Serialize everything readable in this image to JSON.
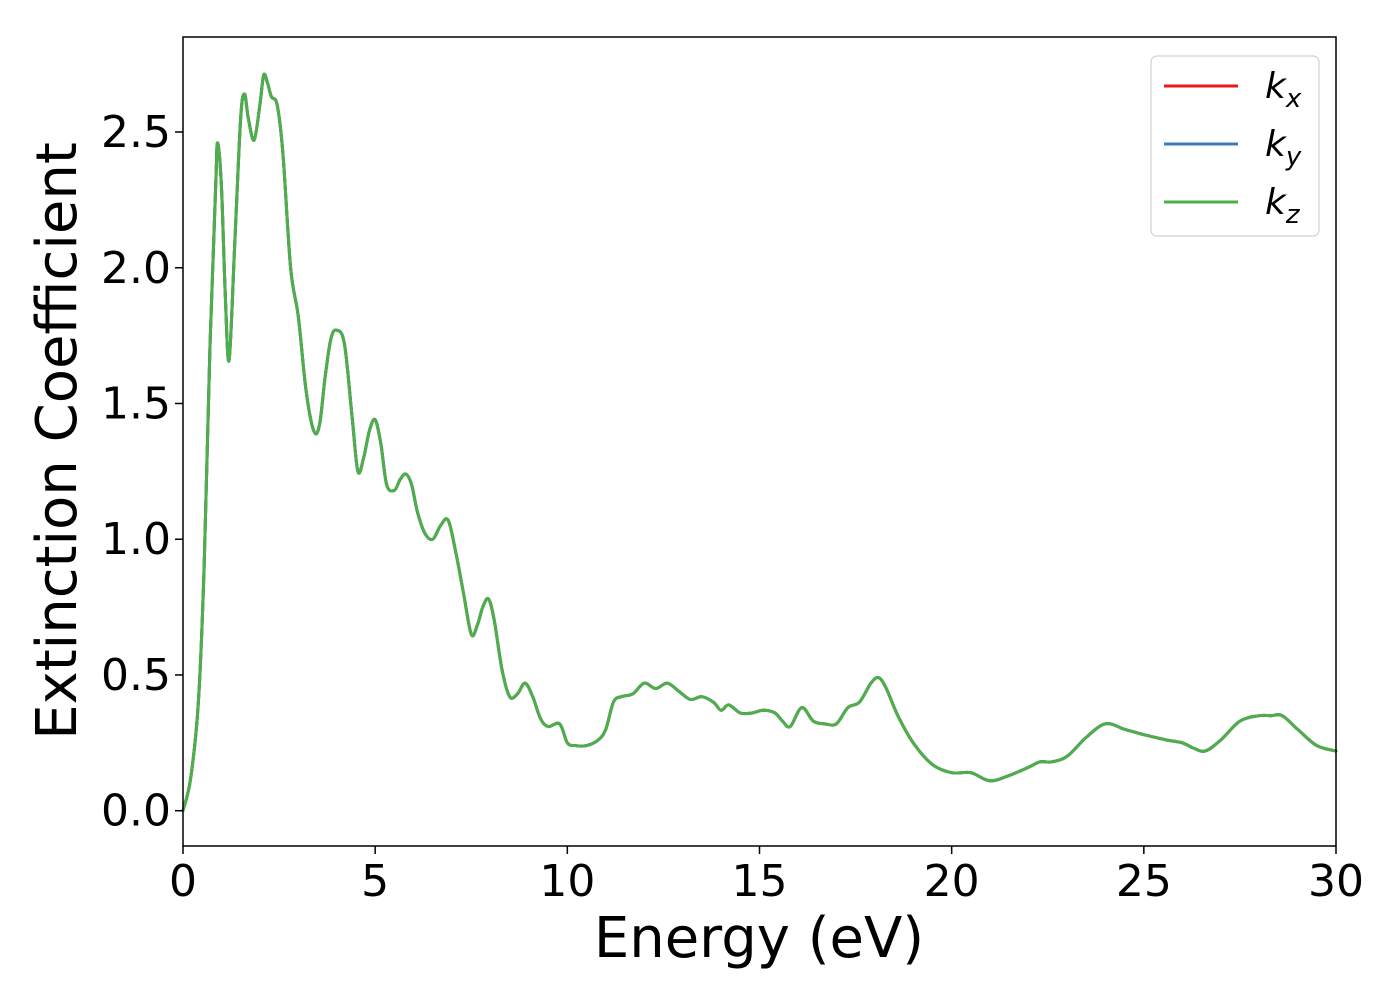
{
  "chart_data": {
    "type": "line",
    "xlabel": "Energy (eV)",
    "ylabel": "Extinction Coefficient",
    "xlim": [
      0,
      30
    ],
    "ylim": [
      -0.13,
      2.85
    ],
    "xticks": [
      "0",
      "5",
      "10",
      "15",
      "20",
      "25",
      "30"
    ],
    "yticks": [
      "0.0",
      "0.5",
      "1.0",
      "1.5",
      "2.0",
      "2.5"
    ],
    "grid": false,
    "legend_position": "top-right",
    "x": [
      0,
      0.2,
      0.4,
      0.55,
      0.7,
      0.85,
      0.9,
      1.0,
      1.1,
      1.2,
      1.35,
      1.5,
      1.6,
      1.7,
      1.85,
      2.0,
      2.1,
      2.2,
      2.3,
      2.45,
      2.6,
      2.8,
      3.0,
      3.2,
      3.4,
      3.55,
      3.7,
      3.85,
      4.0,
      4.2,
      4.4,
      4.55,
      4.7,
      4.85,
      5.0,
      5.15,
      5.3,
      5.5,
      5.65,
      5.8,
      5.95,
      6.1,
      6.3,
      6.5,
      6.7,
      6.9,
      7.1,
      7.3,
      7.5,
      7.65,
      7.8,
      7.95,
      8.1,
      8.3,
      8.5,
      8.7,
      8.9,
      9.1,
      9.3,
      9.5,
      9.8,
      10.0,
      10.2,
      10.5,
      10.8,
      11.0,
      11.2,
      11.4,
      11.7,
      12.0,
      12.3,
      12.6,
      12.9,
      13.2,
      13.5,
      13.8,
      14.0,
      14.2,
      14.5,
      14.8,
      15.1,
      15.4,
      15.6,
      15.8,
      16.1,
      16.4,
      16.7,
      17.0,
      17.3,
      17.6,
      17.9,
      18.1,
      18.3,
      18.6,
      19.0,
      19.5,
      20.0,
      20.5,
      21.0,
      21.5,
      22.0,
      22.3,
      22.6,
      23.0,
      23.5,
      24.0,
      24.5,
      25.0,
      25.3,
      25.6,
      26.0,
      26.3,
      26.6,
      27.0,
      27.5,
      28.0,
      28.3,
      28.6,
      29.0,
      29.5,
      30.0
    ],
    "series": [
      {
        "name": "k_x",
        "color": "#e41a1c",
        "values": [
          0.0,
          0.12,
          0.4,
          0.9,
          1.7,
          2.3,
          2.46,
          2.3,
          1.9,
          1.66,
          2.1,
          2.55,
          2.64,
          2.55,
          2.47,
          2.6,
          2.71,
          2.68,
          2.63,
          2.6,
          2.42,
          2.0,
          1.82,
          1.55,
          1.4,
          1.42,
          1.6,
          1.74,
          1.77,
          1.72,
          1.45,
          1.25,
          1.3,
          1.4,
          1.44,
          1.35,
          1.2,
          1.18,
          1.22,
          1.24,
          1.2,
          1.1,
          1.02,
          1.0,
          1.05,
          1.07,
          0.95,
          0.8,
          0.65,
          0.68,
          0.75,
          0.78,
          0.7,
          0.52,
          0.42,
          0.43,
          0.47,
          0.42,
          0.34,
          0.31,
          0.32,
          0.25,
          0.24,
          0.24,
          0.26,
          0.3,
          0.4,
          0.42,
          0.43,
          0.47,
          0.45,
          0.47,
          0.44,
          0.41,
          0.42,
          0.4,
          0.37,
          0.39,
          0.36,
          0.36,
          0.37,
          0.36,
          0.33,
          0.31,
          0.38,
          0.33,
          0.32,
          0.32,
          0.38,
          0.4,
          0.47,
          0.49,
          0.45,
          0.35,
          0.25,
          0.17,
          0.14,
          0.14,
          0.11,
          0.13,
          0.16,
          0.18,
          0.18,
          0.2,
          0.27,
          0.32,
          0.3,
          0.28,
          0.27,
          0.26,
          0.25,
          0.23,
          0.22,
          0.26,
          0.33,
          0.35,
          0.35,
          0.35,
          0.3,
          0.24,
          0.22
        ]
      },
      {
        "name": "k_y",
        "color": "#377eb8",
        "values": [
          0.0,
          0.12,
          0.4,
          0.9,
          1.7,
          2.3,
          2.46,
          2.3,
          1.9,
          1.66,
          2.1,
          2.55,
          2.64,
          2.55,
          2.47,
          2.6,
          2.71,
          2.68,
          2.63,
          2.6,
          2.42,
          2.0,
          1.82,
          1.55,
          1.4,
          1.42,
          1.6,
          1.74,
          1.77,
          1.72,
          1.45,
          1.25,
          1.3,
          1.4,
          1.44,
          1.35,
          1.2,
          1.18,
          1.22,
          1.24,
          1.2,
          1.1,
          1.02,
          1.0,
          1.05,
          1.07,
          0.95,
          0.8,
          0.65,
          0.68,
          0.75,
          0.78,
          0.7,
          0.52,
          0.42,
          0.43,
          0.47,
          0.42,
          0.34,
          0.31,
          0.32,
          0.25,
          0.24,
          0.24,
          0.26,
          0.3,
          0.4,
          0.42,
          0.43,
          0.47,
          0.45,
          0.47,
          0.44,
          0.41,
          0.42,
          0.4,
          0.37,
          0.39,
          0.36,
          0.36,
          0.37,
          0.36,
          0.33,
          0.31,
          0.38,
          0.33,
          0.32,
          0.32,
          0.38,
          0.4,
          0.47,
          0.49,
          0.45,
          0.35,
          0.25,
          0.17,
          0.14,
          0.14,
          0.11,
          0.13,
          0.16,
          0.18,
          0.18,
          0.2,
          0.27,
          0.32,
          0.3,
          0.28,
          0.27,
          0.26,
          0.25,
          0.23,
          0.22,
          0.26,
          0.33,
          0.35,
          0.35,
          0.35,
          0.3,
          0.24,
          0.22
        ]
      },
      {
        "name": "k_z",
        "color": "#4daf4a",
        "values": [
          0.0,
          0.12,
          0.4,
          0.9,
          1.7,
          2.3,
          2.46,
          2.3,
          1.9,
          1.66,
          2.1,
          2.55,
          2.64,
          2.55,
          2.47,
          2.6,
          2.71,
          2.68,
          2.63,
          2.6,
          2.42,
          2.0,
          1.82,
          1.55,
          1.4,
          1.42,
          1.6,
          1.74,
          1.77,
          1.72,
          1.45,
          1.25,
          1.3,
          1.4,
          1.44,
          1.35,
          1.2,
          1.18,
          1.22,
          1.24,
          1.2,
          1.1,
          1.02,
          1.0,
          1.05,
          1.07,
          0.95,
          0.8,
          0.65,
          0.68,
          0.75,
          0.78,
          0.7,
          0.52,
          0.42,
          0.43,
          0.47,
          0.42,
          0.34,
          0.31,
          0.32,
          0.25,
          0.24,
          0.24,
          0.26,
          0.3,
          0.4,
          0.42,
          0.43,
          0.47,
          0.45,
          0.47,
          0.44,
          0.41,
          0.42,
          0.4,
          0.37,
          0.39,
          0.36,
          0.36,
          0.37,
          0.36,
          0.33,
          0.31,
          0.38,
          0.33,
          0.32,
          0.32,
          0.38,
          0.4,
          0.47,
          0.49,
          0.45,
          0.35,
          0.25,
          0.17,
          0.14,
          0.14,
          0.11,
          0.13,
          0.16,
          0.18,
          0.18,
          0.2,
          0.27,
          0.32,
          0.3,
          0.28,
          0.27,
          0.26,
          0.25,
          0.23,
          0.22,
          0.26,
          0.33,
          0.35,
          0.35,
          0.35,
          0.3,
          0.24,
          0.22
        ]
      }
    ],
    "legend": [
      {
        "base": "k",
        "sub": "x",
        "color": "#e41a1c"
      },
      {
        "base": "k",
        "sub": "y",
        "color": "#377eb8"
      },
      {
        "base": "k",
        "sub": "z",
        "color": "#4daf4a"
      }
    ]
  }
}
